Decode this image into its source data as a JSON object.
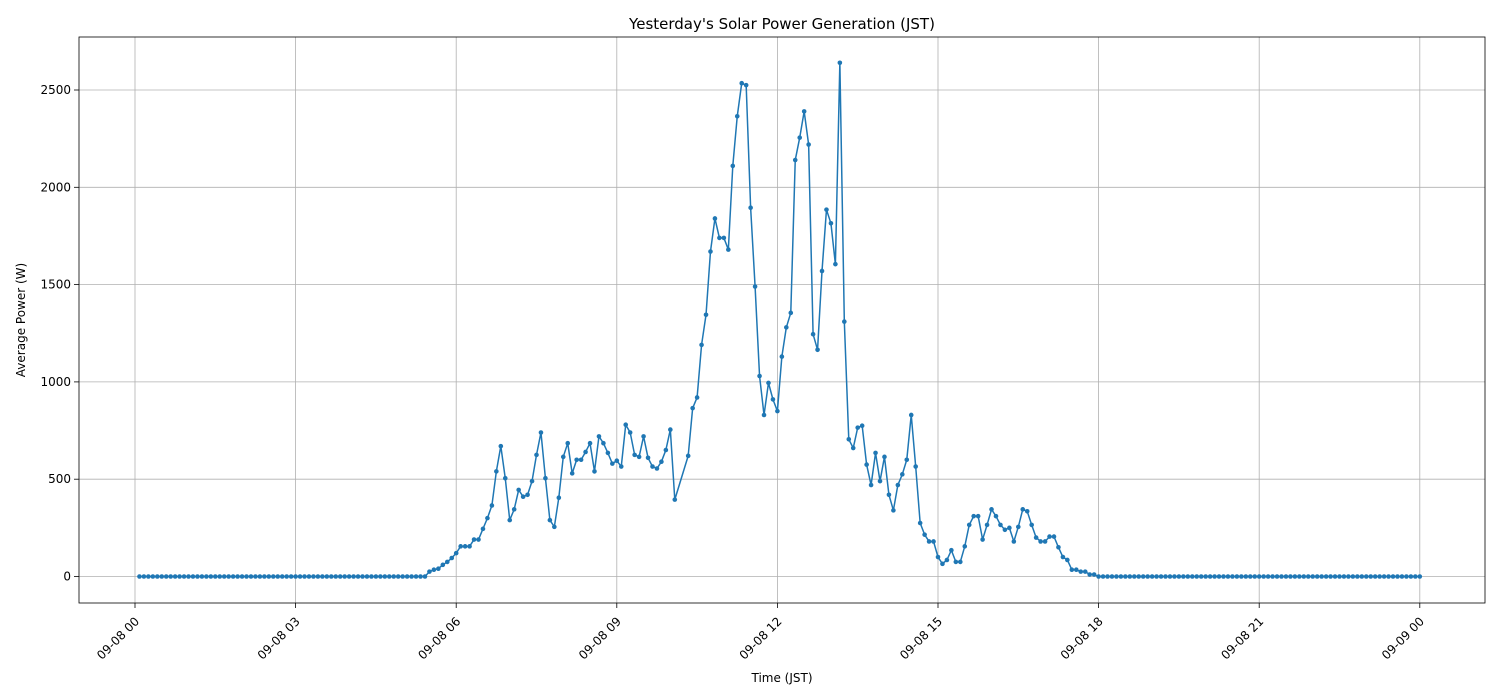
{
  "chart_data": {
    "type": "line",
    "title": "Yesterday's Solar Power Generation (JST)",
    "xlabel": "Time (JST)",
    "ylabel": "Average Power (W)",
    "grid": true,
    "xlim": [
      "09-08 00:00",
      "09-09 00:00"
    ],
    "ylim": [
      -135,
      2750
    ],
    "x_ticks": [
      "09-08 00",
      "09-08 03",
      "09-08 06",
      "09-08 09",
      "09-08 12",
      "09-08 15",
      "09-08 18",
      "09-08 21",
      "09-09 00"
    ],
    "y_ticks": [
      0,
      500,
      1000,
      1500,
      2000,
      2500
    ],
    "series": [
      {
        "color": "#1f77b4",
        "marker": "circle",
        "points": [
          [
            "09-08 00:05",
            0
          ],
          [
            "09-08 00:10",
            0
          ],
          [
            "09-08 00:15",
            0
          ],
          [
            "09-08 00:20",
            0
          ],
          [
            "09-08 00:25",
            0
          ],
          [
            "09-08 00:30",
            0
          ],
          [
            "09-08 00:35",
            0
          ],
          [
            "09-08 00:40",
            0
          ],
          [
            "09-08 00:45",
            0
          ],
          [
            "09-08 00:50",
            0
          ],
          [
            "09-08 00:55",
            0
          ],
          [
            "09-08 01:00",
            0
          ],
          [
            "09-08 01:05",
            0
          ],
          [
            "09-08 01:10",
            0
          ],
          [
            "09-08 01:15",
            0
          ],
          [
            "09-08 01:20",
            0
          ],
          [
            "09-08 01:25",
            0
          ],
          [
            "09-08 01:30",
            0
          ],
          [
            "09-08 01:35",
            0
          ],
          [
            "09-08 01:40",
            0
          ],
          [
            "09-08 01:45",
            0
          ],
          [
            "09-08 01:50",
            0
          ],
          [
            "09-08 01:55",
            0
          ],
          [
            "09-08 02:00",
            0
          ],
          [
            "09-08 02:05",
            0
          ],
          [
            "09-08 02:10",
            0
          ],
          [
            "09-08 02:15",
            0
          ],
          [
            "09-08 02:20",
            0
          ],
          [
            "09-08 02:25",
            0
          ],
          [
            "09-08 02:30",
            0
          ],
          [
            "09-08 02:35",
            0
          ],
          [
            "09-08 02:40",
            0
          ],
          [
            "09-08 02:45",
            0
          ],
          [
            "09-08 02:50",
            0
          ],
          [
            "09-08 02:55",
            0
          ],
          [
            "09-08 03:00",
            0
          ],
          [
            "09-08 03:05",
            0
          ],
          [
            "09-08 03:10",
            0
          ],
          [
            "09-08 03:15",
            0
          ],
          [
            "09-08 03:20",
            0
          ],
          [
            "09-08 03:25",
            0
          ],
          [
            "09-08 03:30",
            0
          ],
          [
            "09-08 03:35",
            0
          ],
          [
            "09-08 03:40",
            0
          ],
          [
            "09-08 03:45",
            0
          ],
          [
            "09-08 03:50",
            0
          ],
          [
            "09-08 03:55",
            0
          ],
          [
            "09-08 04:00",
            0
          ],
          [
            "09-08 04:05",
            0
          ],
          [
            "09-08 04:10",
            0
          ],
          [
            "09-08 04:15",
            0
          ],
          [
            "09-08 04:20",
            0
          ],
          [
            "09-08 04:25",
            0
          ],
          [
            "09-08 04:30",
            0
          ],
          [
            "09-08 04:35",
            0
          ],
          [
            "09-08 04:40",
            0
          ],
          [
            "09-08 04:45",
            0
          ],
          [
            "09-08 04:50",
            0
          ],
          [
            "09-08 04:55",
            0
          ],
          [
            "09-08 05:00",
            0
          ],
          [
            "09-08 05:05",
            0
          ],
          [
            "09-08 05:10",
            0
          ],
          [
            "09-08 05:15",
            0
          ],
          [
            "09-08 05:20",
            0
          ],
          [
            "09-08 05:25",
            0
          ],
          [
            "09-08 05:30",
            25
          ],
          [
            "09-08 05:35",
            35
          ],
          [
            "09-08 05:40",
            40
          ],
          [
            "09-08 05:45",
            60
          ],
          [
            "09-08 05:50",
            75
          ],
          [
            "09-08 05:55",
            95
          ],
          [
            "09-08 06:00",
            120
          ],
          [
            "09-08 06:05",
            155
          ],
          [
            "09-08 06:10",
            155
          ],
          [
            "09-08 06:15",
            155
          ],
          [
            "09-08 06:20",
            190
          ],
          [
            "09-08 06:25",
            190
          ],
          [
            "09-08 06:30",
            245
          ],
          [
            "09-08 06:35",
            300
          ],
          [
            "09-08 06:40",
            365
          ],
          [
            "09-08 06:45",
            540
          ],
          [
            "09-08 06:50",
            670
          ],
          [
            "09-08 06:55",
            505
          ],
          [
            "09-08 07:00",
            290
          ],
          [
            "09-08 07:05",
            345
          ],
          [
            "09-08 07:10",
            445
          ],
          [
            "09-08 07:15",
            410
          ],
          [
            "09-08 07:20",
            420
          ],
          [
            "09-08 07:25",
            490
          ],
          [
            "09-08 07:30",
            625
          ],
          [
            "09-08 07:35",
            740
          ],
          [
            "09-08 07:40",
            505
          ],
          [
            "09-08 07:45",
            290
          ],
          [
            "09-08 07:50",
            255
          ],
          [
            "09-08 07:55",
            405
          ],
          [
            "09-08 08:00",
            615
          ],
          [
            "09-08 08:05",
            685
          ],
          [
            "09-08 08:10",
            530
          ],
          [
            "09-08 08:15",
            600
          ],
          [
            "09-08 08:20",
            600
          ],
          [
            "09-08 08:25",
            640
          ],
          [
            "09-08 08:30",
            685
          ],
          [
            "09-08 08:35",
            540
          ],
          [
            "09-08 08:40",
            720
          ],
          [
            "09-08 08:45",
            685
          ],
          [
            "09-08 08:50",
            635
          ],
          [
            "09-08 08:55",
            580
          ],
          [
            "09-08 09:00",
            595
          ],
          [
            "09-08 09:05",
            565
          ],
          [
            "09-08 09:10",
            780
          ],
          [
            "09-08 09:15",
            740
          ],
          [
            "09-08 09:20",
            625
          ],
          [
            "09-08 09:25",
            615
          ],
          [
            "09-08 09:30",
            720
          ],
          [
            "09-08 09:35",
            610
          ],
          [
            "09-08 09:40",
            565
          ],
          [
            "09-08 09:45",
            555
          ],
          [
            "09-08 09:50",
            590
          ],
          [
            "09-08 09:55",
            650
          ],
          [
            "09-08 10:00",
            755
          ],
          [
            "09-08 10:05",
            395
          ],
          [
            "09-08 10:20",
            620
          ],
          [
            "09-08 10:25",
            865
          ],
          [
            "09-08 10:30",
            920
          ],
          [
            "09-08 10:35",
            1190
          ],
          [
            "09-08 10:40",
            1345
          ],
          [
            "09-08 10:45",
            1670
          ],
          [
            "09-08 10:50",
            1840
          ],
          [
            "09-08 10:55",
            1740
          ],
          [
            "09-08 11:00",
            1740
          ],
          [
            "09-08 11:05",
            1680
          ],
          [
            "09-08 11:10",
            2110
          ],
          [
            "09-08 11:15",
            2365
          ],
          [
            "09-08 11:20",
            2535
          ],
          [
            "09-08 11:25",
            2525
          ],
          [
            "09-08 11:30",
            1895
          ],
          [
            "09-08 11:35",
            1490
          ],
          [
            "09-08 11:40",
            1030
          ],
          [
            "09-08 11:45",
            830
          ],
          [
            "09-08 11:50",
            995
          ],
          [
            "09-08 11:55",
            910
          ],
          [
            "09-08 12:00",
            850
          ],
          [
            "09-08 12:05",
            1130
          ],
          [
            "09-08 12:10",
            1280
          ],
          [
            "09-08 12:15",
            1355
          ],
          [
            "09-08 12:20",
            2140
          ],
          [
            "09-08 12:25",
            2255
          ],
          [
            "09-08 12:30",
            2390
          ],
          [
            "09-08 12:35",
            2220
          ],
          [
            "09-08 12:40",
            1245
          ],
          [
            "09-08 12:45",
            1165
          ],
          [
            "09-08 12:50",
            1570
          ],
          [
            "09-08 12:55",
            1885
          ],
          [
            "09-08 13:00",
            1815
          ],
          [
            "09-08 13:05",
            1605
          ],
          [
            "09-08 13:10",
            2640
          ],
          [
            "09-08 13:15",
            1310
          ],
          [
            "09-08 13:20",
            705
          ],
          [
            "09-08 13:25",
            660
          ],
          [
            "09-08 13:30",
            765
          ],
          [
            "09-08 13:35",
            775
          ],
          [
            "09-08 13:40",
            575
          ],
          [
            "09-08 13:45",
            470
          ],
          [
            "09-08 13:50",
            635
          ],
          [
            "09-08 13:55",
            490
          ],
          [
            "09-08 14:00",
            615
          ],
          [
            "09-08 14:05",
            420
          ],
          [
            "09-08 14:10",
            340
          ],
          [
            "09-08 14:15",
            470
          ],
          [
            "09-08 14:20",
            525
          ],
          [
            "09-08 14:25",
            600
          ],
          [
            "09-08 14:30",
            830
          ],
          [
            "09-08 14:35",
            565
          ],
          [
            "09-08 14:40",
            275
          ],
          [
            "09-08 14:45",
            215
          ],
          [
            "09-08 14:50",
            180
          ],
          [
            "09-08 14:55",
            180
          ],
          [
            "09-08 15:00",
            100
          ],
          [
            "09-08 15:05",
            65
          ],
          [
            "09-08 15:10",
            85
          ],
          [
            "09-08 15:15",
            135
          ],
          [
            "09-08 15:20",
            75
          ],
          [
            "09-08 15:25",
            75
          ],
          [
            "09-08 15:30",
            155
          ],
          [
            "09-08 15:35",
            265
          ],
          [
            "09-08 15:40",
            310
          ],
          [
            "09-08 15:45",
            310
          ],
          [
            "09-08 15:50",
            190
          ],
          [
            "09-08 15:55",
            265
          ],
          [
            "09-08 16:00",
            345
          ],
          [
            "09-08 16:05",
            310
          ],
          [
            "09-08 16:10",
            265
          ],
          [
            "09-08 16:15",
            240
          ],
          [
            "09-08 16:20",
            250
          ],
          [
            "09-08 16:25",
            180
          ],
          [
            "09-08 16:30",
            255
          ],
          [
            "09-08 16:35",
            345
          ],
          [
            "09-08 16:40",
            335
          ],
          [
            "09-08 16:45",
            265
          ],
          [
            "09-08 16:50",
            200
          ],
          [
            "09-08 16:55",
            180
          ],
          [
            "09-08 17:00",
            180
          ],
          [
            "09-08 17:05",
            205
          ],
          [
            "09-08 17:10",
            205
          ],
          [
            "09-08 17:15",
            150
          ],
          [
            "09-08 17:20",
            100
          ],
          [
            "09-08 17:25",
            85
          ],
          [
            "09-08 17:30",
            35
          ],
          [
            "09-08 17:35",
            35
          ],
          [
            "09-08 17:40",
            25
          ],
          [
            "09-08 17:45",
            25
          ],
          [
            "09-08 17:50",
            10
          ],
          [
            "09-08 17:55",
            10
          ],
          [
            "09-08 18:00",
            0
          ],
          [
            "09-08 18:05",
            0
          ],
          [
            "09-08 18:10",
            0
          ],
          [
            "09-08 18:15",
            0
          ],
          [
            "09-08 18:20",
            0
          ],
          [
            "09-08 18:25",
            0
          ],
          [
            "09-08 18:30",
            0
          ],
          [
            "09-08 18:35",
            0
          ],
          [
            "09-08 18:40",
            0
          ],
          [
            "09-08 18:45",
            0
          ],
          [
            "09-08 18:50",
            0
          ],
          [
            "09-08 18:55",
            0
          ],
          [
            "09-08 19:00",
            0
          ],
          [
            "09-08 19:05",
            0
          ],
          [
            "09-08 19:10",
            0
          ],
          [
            "09-08 19:15",
            0
          ],
          [
            "09-08 19:20",
            0
          ],
          [
            "09-08 19:25",
            0
          ],
          [
            "09-08 19:30",
            0
          ],
          [
            "09-08 19:35",
            0
          ],
          [
            "09-08 19:40",
            0
          ],
          [
            "09-08 19:45",
            0
          ],
          [
            "09-08 19:50",
            0
          ],
          [
            "09-08 19:55",
            0
          ],
          [
            "09-08 20:00",
            0
          ],
          [
            "09-08 20:05",
            0
          ],
          [
            "09-08 20:10",
            0
          ],
          [
            "09-08 20:15",
            0
          ],
          [
            "09-08 20:20",
            0
          ],
          [
            "09-08 20:25",
            0
          ],
          [
            "09-08 20:30",
            0
          ],
          [
            "09-08 20:35",
            0
          ],
          [
            "09-08 20:40",
            0
          ],
          [
            "09-08 20:45",
            0
          ],
          [
            "09-08 20:50",
            0
          ],
          [
            "09-08 20:55",
            0
          ],
          [
            "09-08 21:00",
            0
          ],
          [
            "09-08 21:05",
            0
          ],
          [
            "09-08 21:10",
            0
          ],
          [
            "09-08 21:15",
            0
          ],
          [
            "09-08 21:20",
            0
          ],
          [
            "09-08 21:25",
            0
          ],
          [
            "09-08 21:30",
            0
          ],
          [
            "09-08 21:35",
            0
          ],
          [
            "09-08 21:40",
            0
          ],
          [
            "09-08 21:45",
            0
          ],
          [
            "09-08 21:50",
            0
          ],
          [
            "09-08 21:55",
            0
          ],
          [
            "09-08 22:00",
            0
          ],
          [
            "09-08 22:05",
            0
          ],
          [
            "09-08 22:10",
            0
          ],
          [
            "09-08 22:15",
            0
          ],
          [
            "09-08 22:20",
            0
          ],
          [
            "09-08 22:25",
            0
          ],
          [
            "09-08 22:30",
            0
          ],
          [
            "09-08 22:35",
            0
          ],
          [
            "09-08 22:40",
            0
          ],
          [
            "09-08 22:45",
            0
          ],
          [
            "09-08 22:50",
            0
          ],
          [
            "09-08 22:55",
            0
          ],
          [
            "09-08 23:00",
            0
          ],
          [
            "09-08 23:05",
            0
          ],
          [
            "09-08 23:10",
            0
          ],
          [
            "09-08 23:15",
            0
          ],
          [
            "09-08 23:20",
            0
          ],
          [
            "09-08 23:25",
            0
          ],
          [
            "09-08 23:30",
            0
          ],
          [
            "09-08 23:35",
            0
          ],
          [
            "09-08 23:40",
            0
          ],
          [
            "09-08 23:45",
            0
          ],
          [
            "09-08 23:50",
            0
          ],
          [
            "09-08 23:55",
            0
          ],
          [
            "09-09 00:00",
            0
          ]
        ]
      }
    ]
  }
}
